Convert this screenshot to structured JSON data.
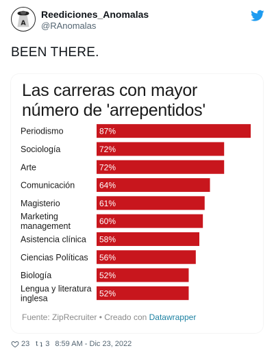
{
  "tweet": {
    "display_name": "Reediciones_Anomalas",
    "handle": "@RAnomalas",
    "text": "BEEN THERE.",
    "likes": "23",
    "retweets": "3",
    "timestamp": "8:59 AM - Dic 23, 2022"
  },
  "icons": {
    "platform": "twitter-bird-icon",
    "like": "heart-icon",
    "retweet": "retweet-icon"
  },
  "colors": {
    "bar": "#c8161d",
    "twitter_blue": "#1d9bf0",
    "source_link": "#1d81a2"
  },
  "chart_data": {
    "type": "bar",
    "orientation": "horizontal",
    "title": "Las carreras con mayor número de 'arrepentidos'",
    "categories": [
      [
        "Periodismo"
      ],
      [
        "Sociología"
      ],
      [
        "Arte"
      ],
      [
        "Comunicación"
      ],
      [
        "Magisterio"
      ],
      [
        "Marketing",
        "management"
      ],
      [
        "Asistencia clínica"
      ],
      [
        "Ciencias Políticas"
      ],
      [
        "Biología"
      ],
      [
        "Lengua y literatura",
        "inglesa"
      ]
    ],
    "values": [
      87,
      72,
      72,
      64,
      61,
      60,
      58,
      56,
      52,
      52
    ],
    "data_labels": [
      "87%",
      "72%",
      "72%",
      "64%",
      "61%",
      "60%",
      "58%",
      "56%",
      "52%",
      "52%"
    ],
    "unit": "%",
    "xlim": [
      0,
      87
    ],
    "source_prefix": "Fuente: ZipRecruiter • Creado con ",
    "source_link": "Datawrapper"
  }
}
